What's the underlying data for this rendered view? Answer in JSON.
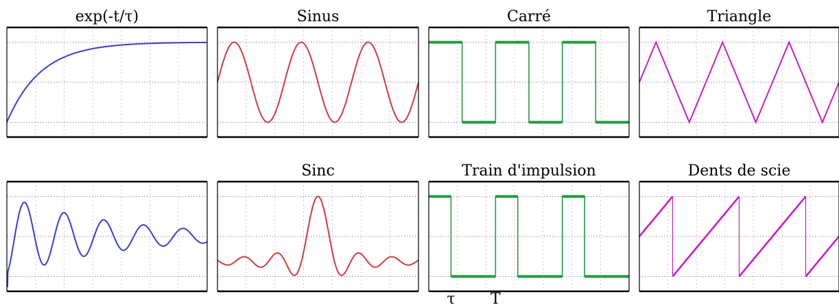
{
  "chart_data": [
    {
      "type": "line",
      "shape": "exp",
      "title": "exp(-t/τ)",
      "color": "#3b3bd6",
      "description_free": true,
      "y_levels": [
        "low",
        "mid",
        "high"
      ]
    },
    {
      "type": "line",
      "shape": "sine",
      "title": "Sinus",
      "color": "#d43a3a"
    },
    {
      "type": "line",
      "shape": "square",
      "title": "Carré",
      "color": "#1e9e3e"
    },
    {
      "type": "line",
      "shape": "triangle",
      "title": "Triangle",
      "color": "#c81cc8"
    },
    {
      "type": "line",
      "shape": "damped",
      "title": "",
      "color": "#3b3bd6"
    },
    {
      "type": "line",
      "shape": "sinc",
      "title": "Sinc",
      "color": "#d43a3a"
    },
    {
      "type": "line",
      "shape": "pulse",
      "title": "Train d'impulsion",
      "color": "#1e9e3e",
      "axis_labels": [
        "τ",
        "T"
      ]
    },
    {
      "type": "line",
      "shape": "sawtooth",
      "title": "Dents de scie",
      "color": "#c81cc8"
    }
  ]
}
